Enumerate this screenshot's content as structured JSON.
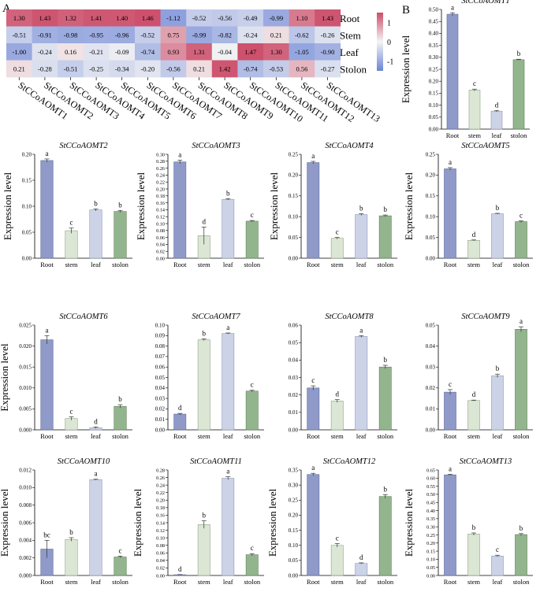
{
  "panels": {
    "a_label": "A",
    "b_label": "B"
  },
  "heatmap": {
    "type": "heatmap",
    "genes": [
      "StCCoAOMT1",
      "StCCoAOMT2",
      "StCCoAOMT3",
      "StCCoAOMT4",
      "StCCoAOMT5",
      "StCCoAOMT6",
      "StCCoAOMT7",
      "StCCoAOMT8",
      "StCCoAOMT9",
      "StCCoAOMT10",
      "StCCoAOMT11",
      "StCCoAOMT12",
      "StCCoAOMT13"
    ],
    "tissues": [
      "Root",
      "Stem",
      "Leaf",
      "Stolon"
    ],
    "values": [
      [
        1.3,
        1.43,
        1.32,
        1.41,
        1.4,
        1.46,
        -1.12,
        -0.52,
        -0.56,
        -0.49,
        -0.99,
        1.1,
        1.43
      ],
      [
        -0.51,
        -0.91,
        -0.98,
        -0.95,
        -0.96,
        -0.52,
        0.75,
        -0.99,
        -0.82,
        -0.24,
        0.21,
        -0.62,
        -0.26
      ],
      [
        -1.0,
        -0.24,
        0.16,
        -0.21,
        -0.09,
        -0.74,
        0.93,
        1.31,
        -0.04,
        1.47,
        1.3,
        -1.05,
        -0.9
      ],
      [
        0.21,
        -0.28,
        -0.51,
        -0.25,
        -0.34,
        -0.2,
        -0.56,
        0.21,
        1.42,
        -0.74,
        -0.53,
        0.56,
        -0.27
      ]
    ],
    "labels": [
      [
        "1.30",
        "1.43",
        "1.32",
        "1.41",
        "1.40",
        "1.46",
        "-1.12",
        "-0.52",
        "-0.56",
        "-0.49",
        "-0.99",
        "1.10",
        "1.43"
      ],
      [
        "-0.51",
        "-0.91",
        "-0.98",
        "-0.95",
        "-0.96",
        "-0.52",
        "0.75",
        "-0.99",
        "-0.82",
        "-0.24",
        "0.21",
        "-0.62",
        "-0.26"
      ],
      [
        "-1.00",
        "-0.24",
        "0.16",
        "-0.21",
        "-0.09",
        "-0.74",
        "0.93",
        "1.31",
        "-0.04",
        "1.47",
        "1.30",
        "-1.05",
        "-0.90"
      ],
      [
        "0.21",
        "-0.28",
        "-0.51",
        "-0.25",
        "-0.34",
        "-0.20",
        "-0.56",
        "0.21",
        "1.42",
        "-0.74",
        "-0.53",
        "0.56",
        "-0.27"
      ]
    ],
    "colorbar": {
      "ticks": [
        1,
        0,
        -1
      ],
      "tick_labels": [
        "1",
        "0",
        "-1"
      ],
      "low_color": "#6b84d6",
      "mid_color": "#f4f4f4",
      "high_color": "#cc4d6a"
    }
  },
  "chart_data": [
    {
      "type": "bar",
      "title": "StCCoAOMT1",
      "categories": [
        "Root",
        "stem",
        "leaf",
        "stolon"
      ],
      "values": [
        0.48,
        0.163,
        0.075,
        0.29
      ],
      "errors": [
        0.006,
        0.004,
        0.003,
        0.002
      ],
      "letters": [
        "a",
        "c",
        "d",
        "b"
      ],
      "ylabel": "Expression level",
      "ylim": [
        0,
        0.5
      ],
      "yticks": [
        0,
        0.05,
        0.1,
        0.15,
        0.2,
        0.25,
        0.3,
        0.35,
        0.4,
        0.45,
        0.5
      ],
      "ytick_labels": [
        "0.00",
        "0.05",
        "0.10",
        "0.15",
        "0.20",
        "0.25",
        "0.30",
        "0.35",
        "0.40",
        "0.45",
        "0.50"
      ]
    },
    {
      "type": "bar",
      "title": "StCCoAOMT2",
      "categories": [
        "Root",
        "stem",
        "leaf",
        "stolon"
      ],
      "values": [
        0.188,
        0.053,
        0.093,
        0.09
      ],
      "errors": [
        0.003,
        0.005,
        0.002,
        0.002
      ],
      "letters": [
        "a",
        "c",
        "b",
        "b"
      ],
      "ylabel": "Expression level",
      "ylim": [
        0,
        0.2
      ],
      "yticks": [
        0,
        0.05,
        0.1,
        0.15,
        0.2
      ],
      "ytick_labels": [
        "0.00",
        "0.05",
        "0.10",
        "0.15",
        "0.20"
      ]
    },
    {
      "type": "bar",
      "title": "StCCoAOMT3",
      "categories": [
        "Root",
        "stem",
        "leaf",
        "stolon"
      ],
      "values": [
        0.278,
        0.065,
        0.17,
        0.107
      ],
      "errors": [
        0.005,
        0.025,
        0.002,
        0.002
      ],
      "letters": [
        "a",
        "d",
        "b",
        "c"
      ],
      "ylabel": "Expression level",
      "ylim": [
        0,
        0.3
      ],
      "yticks": [
        0,
        0.02,
        0.04,
        0.06,
        0.08,
        0.1,
        0.12,
        0.14,
        0.16,
        0.18,
        0.2,
        0.22,
        0.24,
        0.26,
        0.28,
        0.3
      ],
      "ytick_labels": [
        "0.00",
        "0.02",
        "0.04",
        "0.06",
        "0.08",
        "0.10",
        "0.12",
        "0.14",
        "0.16",
        "0.18",
        "0.20",
        "0.22",
        "0.24",
        "0.26",
        "0.28",
        "0.30"
      ]
    },
    {
      "type": "bar",
      "title": "StCCoAOMT4",
      "categories": [
        "Root",
        "stem",
        "leaf",
        "stolon"
      ],
      "values": [
        0.23,
        0.048,
        0.105,
        0.102
      ],
      "errors": [
        0.003,
        0.002,
        0.002,
        0.002
      ],
      "letters": [
        "a",
        "c",
        "b",
        "b"
      ],
      "ylabel": "Expression level",
      "ylim": [
        0,
        0.25
      ],
      "yticks": [
        0,
        0.05,
        0.1,
        0.15,
        0.2,
        0.25
      ],
      "ytick_labels": [
        "0.00",
        "0.05",
        "0.10",
        "0.15",
        "0.20",
        "0.25"
      ]
    },
    {
      "type": "bar",
      "title": "StCCoAOMT5",
      "categories": [
        "Root",
        "stem",
        "leaf",
        "stolon"
      ],
      "values": [
        0.215,
        0.043,
        0.107,
        0.088
      ],
      "errors": [
        0.003,
        0.001,
        0.001,
        0.002
      ],
      "letters": [
        "a",
        "d",
        "b",
        "c"
      ],
      "ylabel": "Expression level",
      "ylim": [
        0,
        0.25
      ],
      "yticks": [
        0,
        0.05,
        0.1,
        0.15,
        0.2,
        0.25
      ],
      "ytick_labels": [
        "0.00",
        "0.05",
        "0.10",
        "0.15",
        "0.20",
        "0.25"
      ]
    },
    {
      "type": "bar",
      "title": "StCCoAOMT6",
      "categories": [
        "Root",
        "stem",
        "leaf",
        "stolon"
      ],
      "values": [
        0.0215,
        0.0027,
        0.0005,
        0.0056
      ],
      "errors": [
        0.001,
        0.0004,
        0.0002,
        0.0004
      ],
      "letters": [
        "a",
        "c",
        "d",
        "b"
      ],
      "ylabel": "Expression level",
      "ylim": [
        0,
        0.025
      ],
      "yticks": [
        0,
        0.005,
        0.01,
        0.015,
        0.02,
        0.025
      ],
      "ytick_labels": [
        "0.000",
        "0.005",
        "0.010",
        "0.015",
        "0.020",
        "0.025"
      ]
    },
    {
      "type": "bar",
      "title": "StCCoAOMT7",
      "categories": [
        "Root",
        "stem",
        "leaf",
        "stolon"
      ],
      "values": [
        0.015,
        0.086,
        0.092,
        0.037
      ],
      "errors": [
        0.0007,
        0.0008,
        0.0005,
        0.0008
      ],
      "letters": [
        "d",
        "b",
        "a",
        "c"
      ],
      "ylabel": "",
      "ylim": [
        0,
        0.1
      ],
      "yticks": [
        0,
        0.01,
        0.02,
        0.03,
        0.04,
        0.05,
        0.06,
        0.07,
        0.08,
        0.09,
        0.1
      ],
      "ytick_labels": [
        "0.00",
        "0.01",
        "0.02",
        "0.03",
        "0.04",
        "0.05",
        "0.06",
        "0.07",
        "0.08",
        "0.09",
        "0.10"
      ]
    },
    {
      "type": "bar",
      "title": "StCCoAOMT8",
      "categories": [
        "Root",
        "stem",
        "leaf",
        "stolon"
      ],
      "values": [
        0.024,
        0.0165,
        0.0535,
        0.036
      ],
      "errors": [
        0.0012,
        0.0008,
        0.0005,
        0.001
      ],
      "letters": [
        "c",
        "d",
        "a",
        "b"
      ],
      "ylabel": "",
      "ylim": [
        0,
        0.06
      ],
      "yticks": [
        0,
        0.01,
        0.02,
        0.03,
        0.04,
        0.05,
        0.06
      ],
      "ytick_labels": [
        "0.00",
        "0.01",
        "0.02",
        "0.03",
        "0.04",
        "0.05",
        "0.06"
      ]
    },
    {
      "type": "bar",
      "title": "StCCoAOMT9",
      "categories": [
        "Root",
        "stem",
        "leaf",
        "stolon"
      ],
      "values": [
        0.018,
        0.014,
        0.0258,
        0.048
      ],
      "errors": [
        0.0012,
        0.0002,
        0.0008,
        0.0012
      ],
      "letters": [
        "c",
        "d",
        "b",
        "a"
      ],
      "ylabel": "",
      "ylim": [
        0,
        0.05
      ],
      "yticks": [
        0,
        0.01,
        0.02,
        0.03,
        0.04,
        0.05
      ],
      "ytick_labels": [
        "0.00",
        "0.01",
        "0.02",
        "0.03",
        "0.04",
        "0.05"
      ]
    },
    {
      "type": "bar",
      "title": "StCCoAOMT10",
      "categories": [
        "Root",
        "stem",
        "leaf",
        "stolon"
      ],
      "values": [
        0.003,
        0.0041,
        0.0109,
        0.0021
      ],
      "errors": [
        0.001,
        0.0002,
        5e-05,
        0.0001
      ],
      "letters": [
        "bc",
        "b",
        "a",
        "c"
      ],
      "ylabel": "Expression level",
      "ylim": [
        0,
        0.012
      ],
      "yticks": [
        0,
        0.002,
        0.004,
        0.006,
        0.008,
        0.01,
        0.012
      ],
      "ytick_labels": [
        "0.000",
        "0.002",
        "0.004",
        "0.006",
        "0.008",
        "0.010",
        "0.012"
      ]
    },
    {
      "type": "bar",
      "title": "StCCoAOMT11",
      "categories": [
        "Root",
        "stem",
        "leaf",
        "stolon"
      ],
      "values": [
        0.002,
        0.135,
        0.258,
        0.055
      ],
      "errors": [
        0.0005,
        0.01,
        0.004,
        0.003
      ],
      "letters": [
        "d",
        "b",
        "a",
        "c"
      ],
      "ylabel": "Expression level",
      "ylim": [
        0,
        0.28
      ],
      "yticks": [
        0,
        0.02,
        0.04,
        0.06,
        0.08,
        0.1,
        0.12,
        0.14,
        0.16,
        0.18,
        0.2,
        0.22,
        0.24,
        0.26,
        0.28
      ],
      "ytick_labels": [
        "0.00",
        "0.02",
        "0.04",
        "0.06",
        "0.08",
        "0.10",
        "0.12",
        "0.14",
        "0.16",
        "0.18",
        "0.20",
        "0.22",
        "0.24",
        "0.26",
        "0.28"
      ]
    },
    {
      "type": "bar",
      "title": "StCCoAOMT12",
      "categories": [
        "Root",
        "stem",
        "leaf",
        "stolon"
      ],
      "values": [
        0.335,
        0.1,
        0.04,
        0.262
      ],
      "errors": [
        0.004,
        0.006,
        0.002,
        0.006
      ],
      "letters": [
        "a",
        "c",
        "d",
        "b"
      ],
      "ylabel": "Expression level",
      "ylim": [
        0,
        0.35
      ],
      "yticks": [
        0,
        0.05,
        0.1,
        0.15,
        0.2,
        0.25,
        0.3,
        0.35
      ],
      "ytick_labels": [
        "0.00",
        "0.05",
        "0.10",
        "0.15",
        "0.20",
        "0.25",
        "0.30",
        "0.35"
      ]
    },
    {
      "type": "bar",
      "title": "StCCoAOMT13",
      "categories": [
        "Root",
        "stem",
        "leaf",
        "stolon"
      ],
      "values": [
        0.62,
        0.255,
        0.12,
        0.252
      ],
      "errors": [
        0.003,
        0.007,
        0.005,
        0.006
      ],
      "letters": [
        "a",
        "b",
        "c",
        "b"
      ],
      "ylabel": "Expression level",
      "ylim": [
        0,
        0.65
      ],
      "yticks": [
        0,
        0.05,
        0.1,
        0.15,
        0.2,
        0.25,
        0.3,
        0.35,
        0.4,
        0.45,
        0.5,
        0.55,
        0.6,
        0.65
      ],
      "ytick_labels": [
        "0.00",
        "0.05",
        "0.10",
        "0.15",
        "0.20",
        "0.25",
        "0.30",
        "0.35",
        "0.40",
        "0.45",
        "0.50",
        "0.55",
        "0.60",
        "0.65"
      ]
    }
  ],
  "style": {
    "bar_colors": [
      "#8f9ac9",
      "#dce6d4",
      "#ccd3e6",
      "#93b58d"
    ],
    "bar_edges": [
      "#5f6a9c",
      "#8ea485",
      "#8e98b8",
      "#5e7f58"
    ]
  }
}
